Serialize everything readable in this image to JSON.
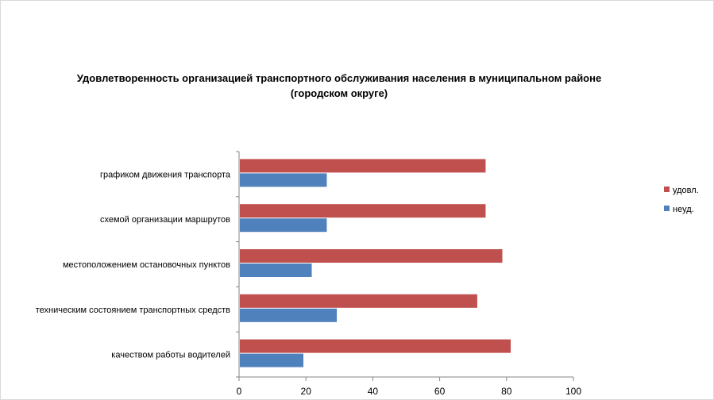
{
  "chart_data": {
    "type": "bar",
    "orientation": "horizontal",
    "title_lines": [
      "Удовлетворенность организацией транспортного обслуживания населения в муниципальном районе",
      "(городском округе)"
    ],
    "categories": [
      "графиком движения  транспорта",
      "схемой организации маршрутов",
      "местоположением  остановочных пунктов",
      "техническим  состоянием транспортных средств",
      "качеством  работы водителей"
    ],
    "series": [
      {
        "name": "удовл.",
        "color": "#c0504d",
        "values": [
          73.5,
          73.5,
          78.5,
          71,
          81
        ]
      },
      {
        "name": "неуд.",
        "color": "#4f81bd",
        "values": [
          26,
          26,
          21.5,
          29,
          19
        ]
      }
    ],
    "xlim": [
      0,
      100
    ],
    "x_ticks": [
      0,
      20,
      40,
      60,
      80,
      100
    ],
    "grid": false,
    "legend_position": "right"
  }
}
